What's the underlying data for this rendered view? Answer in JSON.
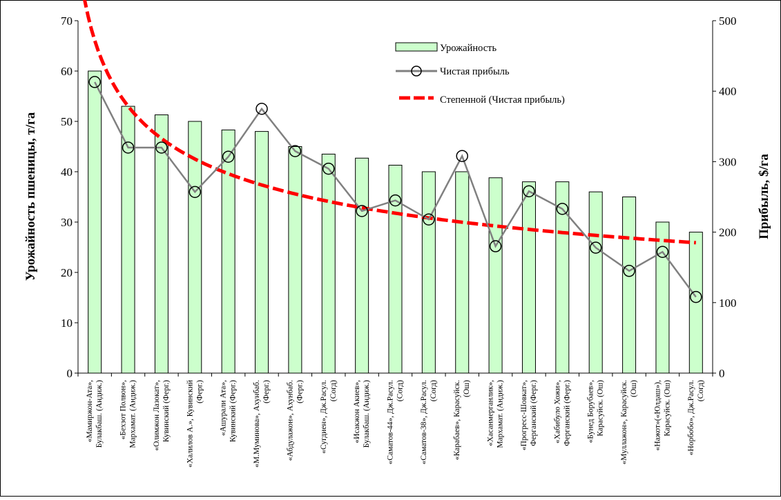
{
  "chart_data": {
    "type": "bar",
    "categories": [
      [
        "«Мамиржон-Ата»,",
        "Булакбаш. (Андиж.)"
      ],
      [
        "«Бехзот Полвон»,",
        "Мархамат. (Андиж.)"
      ],
      [
        "«Олимжон Лазокат»,",
        "Кувинский (Ферг.)"
      ],
      [
        "«Халилов А.», Кувинский",
        "(Ферг.)"
      ],
      [
        "«Ашурали Ата»,",
        "Кувинский (Ферг.)"
      ],
      [
        "«М.Муминова», Ахунбаб.",
        "(Ферг.)"
      ],
      [
        "«Абдулажон», Ахунбаб.",
        "(Ферг.)"
      ],
      [
        "«Сугдиен», Дж.Расул.",
        "(Согд)"
      ],
      [
        "«Исакжон Акиев»,",
        "Булакбаш. (Андиж.)"
      ],
      [
        "«Саматов-44», Дж.Расул.",
        "(Согд)"
      ],
      [
        "«Саматов-38», Дж.Расул.",
        "(Согд)"
      ],
      [
        "«Карабаев», Карасуйск.",
        "(Ош)"
      ],
      [
        "«Хасанмерганлик»,",
        "Мархамат. (Андиж.)"
      ],
      [
        "«Прогресс-Шовкат»,",
        "Ферганский (Ферг.)"
      ],
      [
        "«Хабибуло Хожи»,",
        "Ферганский (Ферг.)"
      ],
      [
        "«Бунед Борубаев»,",
        "Карасуйск. (Ош)"
      ],
      [
        "«Муллажон», Карасуйск.",
        "(Ош)"
      ],
      [
        "«Нажот»(«Юлдаш»),",
        "Карасуйск. (Ош)"
      ],
      [
        "«Норбобо», Дж.Расул.",
        "(Согд)"
      ]
    ],
    "series": [
      {
        "name": "Урожайность",
        "type": "bar",
        "axis": "left",
        "values": [
          60,
          53,
          51.3,
          50,
          48.3,
          48,
          45,
          43.5,
          42.7,
          41.3,
          40,
          40,
          38.8,
          38,
          38,
          36,
          35,
          30,
          28
        ]
      },
      {
        "name": "Чистая прибыль",
        "type": "line",
        "axis": "right",
        "values": [
          413,
          320,
          320,
          257,
          307,
          375,
          315,
          290,
          230,
          245,
          218,
          308,
          180,
          258,
          233,
          178,
          145,
          172,
          108
        ]
      },
      {
        "name": "Степенной (Чистая прибыль)",
        "type": "trendline-power",
        "axis": "right",
        "values": [
          472,
          369,
          334,
          307,
          285,
          267,
          253,
          242,
          233,
          225,
          218,
          212,
          207,
          202,
          198,
          194,
          191,
          188,
          185
        ]
      }
    ],
    "ylabel": "Урожайность пшеницы, т/га",
    "y2label": "Прибыль, $/га",
    "ylim": [
      0,
      70
    ],
    "yticks": [
      0,
      10,
      20,
      30,
      40,
      50,
      60,
      70
    ],
    "y2lim": [
      0,
      500
    ],
    "y2ticks": [
      0,
      100,
      200,
      300,
      400,
      500
    ],
    "grid": false,
    "legend_position": "top-right",
    "colors": {
      "bar_fill": "#ccffcc",
      "bar_stroke": "#000000",
      "line": "#808080",
      "marker_stroke": "#000000",
      "trend": "#ff0000"
    }
  }
}
